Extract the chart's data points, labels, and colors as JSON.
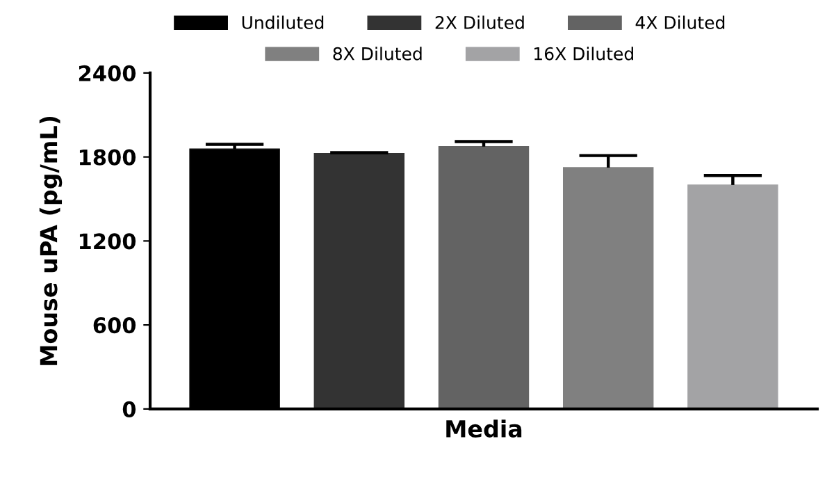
{
  "chart_data": {
    "type": "bar",
    "ylabel": "Mouse uPA (pg/mL)",
    "xlabel": "Media",
    "categories": [
      null
    ],
    "series": [
      {
        "name": "Undiluted",
        "color": "#000000",
        "values": [
          1857
        ],
        "errors": [
          [
            1857,
            1890
          ]
        ]
      },
      {
        "name": "2X Diluted",
        "color": "#333333",
        "values": [
          1824
        ],
        "errors": [
          [
            1824,
            1830
          ]
        ]
      },
      {
        "name": "4X Diluted",
        "color": "#636363",
        "values": [
          1874
        ],
        "errors": [
          [
            1874,
            1910
          ]
        ]
      },
      {
        "name": "8X Diluted",
        "color": "#808080",
        "values": [
          1724
        ],
        "errors": [
          [
            1724,
            1810
          ]
        ]
      },
      {
        "name": "16X Diluted",
        "color": "#a3a3a5",
        "values": [
          1600
        ],
        "errors": [
          [
            1600,
            1668
          ]
        ]
      }
    ],
    "ylim": [
      0,
      2400
    ],
    "yticks": [
      0,
      600,
      1200,
      1800,
      2400
    ],
    "grid": false,
    "legend": "top"
  }
}
